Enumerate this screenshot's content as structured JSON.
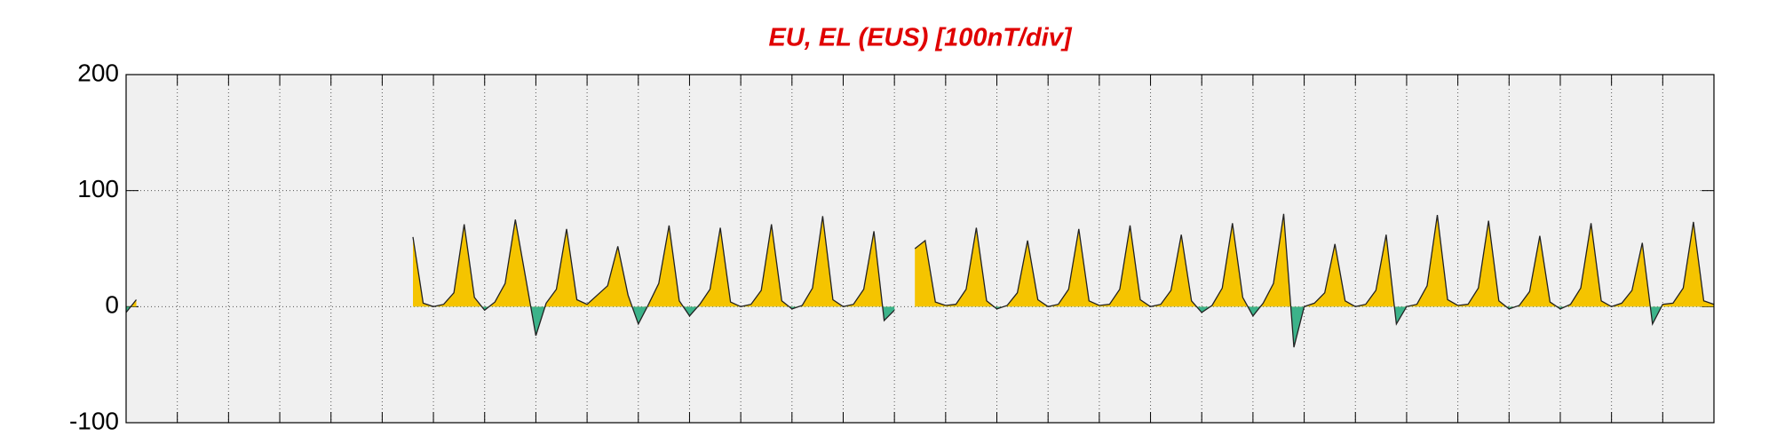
{
  "chart_data": {
    "type": "area",
    "title": "EU, EL (EUS)  [100nT/div]",
    "xlim": [
      0,
      31
    ],
    "xticks": [
      1,
      2,
      3,
      4,
      5,
      6,
      7,
      8,
      9,
      10,
      11,
      12,
      13,
      14,
      15,
      16,
      17,
      18,
      19,
      20,
      21,
      22,
      23,
      24,
      25,
      26,
      27,
      28,
      29,
      30
    ],
    "ylim": [
      -100,
      200
    ],
    "yticks": [
      -100,
      0,
      100,
      200
    ],
    "grid": true,
    "positive_color": "#f5c400",
    "negative_color": "#3cb38a",
    "line_color": "#222222",
    "x": [
      0,
      0.2,
      0.4,
      5.6,
      5.8,
      6,
      6.2,
      6.4,
      6.6,
      6.8,
      7,
      7.2,
      7.4,
      7.6,
      7.8,
      8,
      8.2,
      8.4,
      8.6,
      8.8,
      9,
      9.2,
      9.4,
      9.6,
      9.8,
      10,
      10.2,
      10.4,
      10.6,
      10.8,
      11,
      11.2,
      11.4,
      11.6,
      11.8,
      12,
      12.2,
      12.4,
      12.6,
      12.8,
      13,
      13.2,
      13.4,
      13.6,
      13.8,
      14,
      14.2,
      14.4,
      14.6,
      14.8,
      15,
      15.2,
      15.4,
      15.6,
      15.8,
      16,
      16.2,
      16.4,
      16.6,
      16.8,
      17,
      17.2,
      17.4,
      17.6,
      17.8,
      18,
      18.2,
      18.4,
      18.6,
      18.8,
      19,
      19.2,
      19.4,
      19.6,
      19.8,
      20,
      20.2,
      20.4,
      20.6,
      20.8,
      21,
      21.2,
      21.4,
      21.6,
      21.8,
      22,
      22.2,
      22.4,
      22.6,
      22.8,
      23,
      23.2,
      23.4,
      23.6,
      23.8,
      24,
      24.2,
      24.4,
      24.6,
      24.8,
      25,
      25.2,
      25.4,
      25.6,
      25.8,
      26,
      26.2,
      26.4,
      26.6,
      26.8,
      27,
      27.2,
      27.4,
      27.6,
      27.8,
      28,
      28.2,
      28.4,
      28.6,
      28.8,
      29,
      29.2,
      29.4,
      29.6,
      29.8,
      30,
      30.2,
      30.4,
      30.6,
      30.8,
      31
    ],
    "values": [
      -5,
      6,
      null,
      60,
      3,
      0,
      2,
      12,
      71,
      8,
      -3,
      4,
      20,
      75,
      25,
      -25,
      3,
      15,
      67,
      6,
      2,
      10,
      18,
      52,
      10,
      -15,
      2,
      20,
      70,
      5,
      -8,
      2,
      15,
      68,
      4,
      0,
      2,
      14,
      71,
      5,
      -2,
      1,
      16,
      78,
      6,
      0,
      2,
      15,
      65,
      -12,
      -3,
      null,
      50,
      57,
      4,
      1,
      2,
      15,
      68,
      5,
      -2,
      1,
      12,
      57,
      6,
      0,
      2,
      15,
      67,
      5,
      1,
      2,
      15,
      70,
      6,
      0,
      2,
      14,
      62,
      5,
      -5,
      1,
      16,
      72,
      8,
      -8,
      3,
      20,
      80,
      -35,
      0,
      3,
      12,
      54,
      5,
      0,
      2,
      14,
      62,
      -15,
      0,
      2,
      18,
      79,
      6,
      1,
      2,
      16,
      74,
      5,
      -2,
      1,
      13,
      61,
      4,
      -2,
      2,
      16,
      72,
      5,
      0,
      3,
      14,
      55,
      -15,
      2,
      3,
      16,
      73,
      5,
      2
    ]
  }
}
